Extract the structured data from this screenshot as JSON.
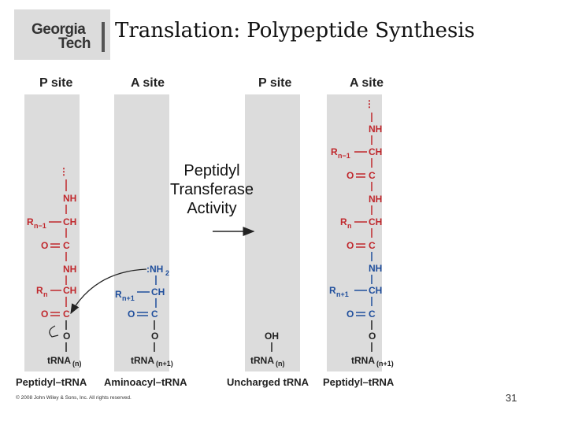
{
  "logo": {
    "line1": "Georgia",
    "line2": "Tech"
  },
  "title": "Translation: Polypeptide Synthesis",
  "headers": [
    "P site",
    "A site",
    "P site",
    "A site"
  ],
  "transfer_label": "Peptidyl Transferase Activity",
  "captions": [
    "Peptidyl–tRNA",
    "Aminoacyl–tRNA",
    "Uncharged tRNA",
    "Peptidyl–tRNA"
  ],
  "copyright": "© 2008 John Wiley & Sons, Inc. All rights reserved.",
  "page_number": "31",
  "colors": {
    "peptide_red": "#c0282d",
    "amino_blue": "#1f4e9c",
    "strip_gray": "#dcdcdc"
  }
}
